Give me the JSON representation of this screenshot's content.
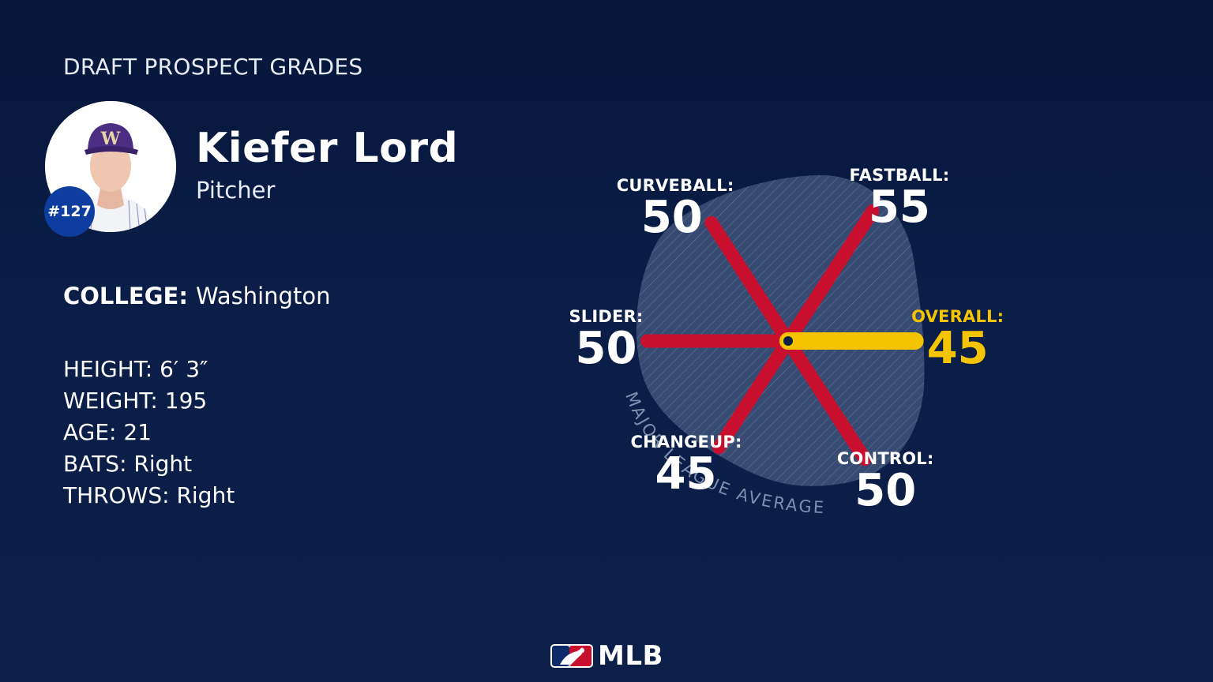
{
  "header": {
    "title": "DRAFT PROSPECT GRADES"
  },
  "player": {
    "name": "Kiefer Lord",
    "position": "Pitcher",
    "rank": "#127",
    "college_label": "COLLEGE:",
    "college_value": "Washington",
    "stats": [
      "HEIGHT: 6′ 3″",
      "WEIGHT: 195",
      "AGE: 21",
      "BATS: Right",
      "THROWS: Right"
    ]
  },
  "chart_data": {
    "type": "radar",
    "scale_note": "MAJOR LEAGUE AVERAGE",
    "categories": [
      "FASTBALL:",
      "OVERALL:",
      "CONTROL:",
      "CHANGEUP:",
      "SLIDER:",
      "CURVEBALL:"
    ],
    "values": [
      55,
      45,
      50,
      45,
      50,
      50
    ],
    "highlight": "OVERALL:",
    "colors": {
      "spoke": "#c8102e",
      "highlight": "#f5c400",
      "average_fill": "#5b6f95"
    }
  },
  "footer": {
    "logo_text": "MLB"
  }
}
